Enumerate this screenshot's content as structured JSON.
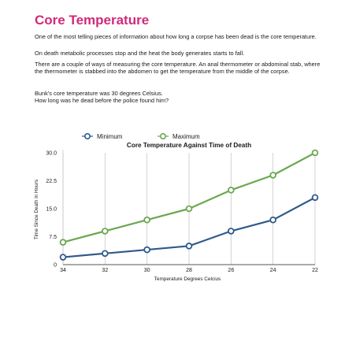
{
  "article": {
    "title": "Core Temperature",
    "paragraphs": [
      "One of the most telling pieces of information about how long a corpse has been dead is the core temperature.",
      "On death metabolic processes stop and the heat the body generates starts to fall.",
      "There are a couple of ways of measuring the core temperature. An anal thermometer or abdominal stab, where the thermometer is stabbed into the abdomen to get the temperature from the middle of the corpse.",
      "Bunk's core temperature was 30 degrees Celsius.",
      "How long was he dead before the police found him?"
    ]
  },
  "colors": {
    "title": "#d02a78",
    "minimum": "#2f5a8a",
    "maximum": "#6aa84f",
    "grid": "#c8c8c8",
    "axis": "#555555"
  },
  "chart_data": {
    "type": "line",
    "title": "Core Temperature Against Time of Death",
    "xlabel": "Temperature Degrees Celcius",
    "ylabel": "Time Since Death in Hours",
    "categories": [
      "34",
      "32",
      "30",
      "28",
      "26",
      "24",
      "22"
    ],
    "ytick_labels": [
      "0",
      "7.5",
      "15.0",
      "22.5",
      "30.0"
    ],
    "yticks": [
      0,
      7.5,
      15,
      22.5,
      30
    ],
    "ylim": [
      0,
      32
    ],
    "grid": "vertical",
    "legend_position": "top-left",
    "series": [
      {
        "name": "Minimum",
        "color": "#2f5a8a",
        "values": [
          2,
          3,
          4,
          5,
          9,
          12,
          18
        ]
      },
      {
        "name": "Maximum",
        "color": "#6aa84f",
        "values": [
          6,
          9,
          12,
          15,
          20,
          24,
          30
        ]
      }
    ]
  }
}
